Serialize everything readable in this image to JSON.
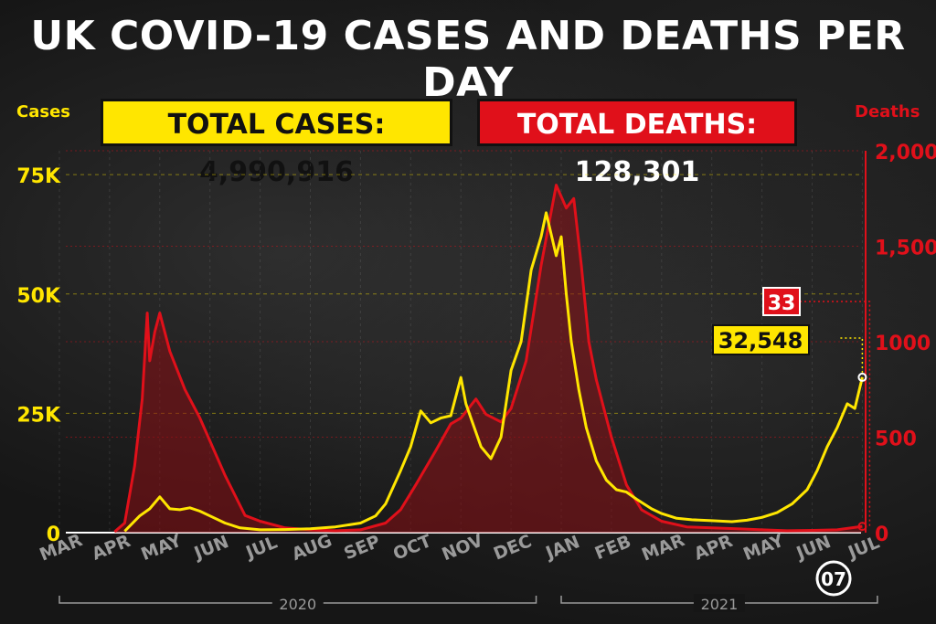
{
  "title": "UK COVID-19 CASES AND DEATHS PER DAY",
  "total_cases_label": "TOTAL CASES: 4,990,916",
  "total_deaths_label": "TOTAL DEATHS: 128,301",
  "colors": {
    "cases": "#ffe600",
    "deaths": "#e0101a",
    "deaths_fill": "#8a0f14",
    "background": "#161616",
    "text": "#ffffff"
  },
  "chart_data": {
    "type": "line",
    "title": "UK COVID-19 CASES AND DEATHS PER DAY",
    "ylabel_left": "Cases",
    "ylabel_right": "Deaths",
    "left_axis": {
      "ylim": [
        0,
        80000
      ],
      "ticks": [
        0,
        25000,
        50000,
        75000
      ],
      "tick_labels": [
        "0",
        "25K",
        "50K",
        "75K"
      ]
    },
    "right_axis": {
      "ylim": [
        0,
        2000
      ],
      "ticks": [
        0,
        500,
        1000,
        1500,
        2000
      ],
      "tick_labels": [
        "0",
        "500",
        "1000",
        "1,500",
        "2,000"
      ]
    },
    "x_ticks": [
      "MAR",
      "APR",
      "MAY",
      "JUN",
      "JUL",
      "AUG",
      "SEP",
      "OCT",
      "NOV",
      "DEC",
      "JAN",
      "FEB",
      "MAR",
      "APR",
      "MAY",
      "JUN",
      "JUL"
    ],
    "x_tick_months": [
      0,
      1,
      2,
      3,
      4,
      5,
      6,
      7,
      8,
      9,
      10,
      11,
      12,
      13,
      14,
      15,
      16
    ],
    "year_labels": [
      {
        "label": "2020",
        "from": 0,
        "to": 9.5
      },
      {
        "label": "2021",
        "from": 10,
        "to": 16.3
      }
    ],
    "grid": true,
    "series": [
      {
        "name": "Cases",
        "axis": "left",
        "x": [
          1.3,
          1.6,
          1.8,
          2.0,
          2.2,
          2.4,
          2.6,
          2.8,
          3.0,
          3.3,
          3.6,
          4.0,
          4.5,
          5.0,
          5.5,
          6.0,
          6.3,
          6.5,
          6.8,
          7.0,
          7.2,
          7.4,
          7.6,
          7.8,
          8.0,
          8.1,
          8.2,
          8.4,
          8.6,
          8.8,
          9.0,
          9.2,
          9.4,
          9.6,
          9.7,
          9.9,
          10.0,
          10.1,
          10.2,
          10.35,
          10.5,
          10.7,
          10.9,
          11.1,
          11.3,
          11.5,
          11.8,
          12.0,
          12.3,
          12.6,
          13.0,
          13.4,
          13.7,
          14.0,
          14.3,
          14.6,
          14.9,
          15.1,
          15.3,
          15.5,
          15.7,
          15.85,
          16.0
        ],
        "values": [
          300,
          3500,
          5000,
          7500,
          5000,
          4800,
          5200,
          4500,
          3500,
          2000,
          1000,
          600,
          650,
          800,
          1200,
          2000,
          3500,
          6000,
          13000,
          18000,
          25500,
          23000,
          24000,
          24500,
          32500,
          27000,
          24000,
          18000,
          15500,
          20000,
          34000,
          40000,
          55000,
          62000,
          67000,
          58000,
          62000,
          50000,
          40000,
          30000,
          22000,
          15000,
          11000,
          9000,
          8500,
          7000,
          5000,
          4000,
          3000,
          2700,
          2500,
          2300,
          2600,
          3200,
          4200,
          6000,
          9000,
          13000,
          18000,
          22000,
          27000,
          26000,
          32548
        ]
      },
      {
        "name": "Deaths",
        "axis": "right",
        "x": [
          1.1,
          1.3,
          1.5,
          1.65,
          1.75,
          1.8,
          1.9,
          2.0,
          2.2,
          2.5,
          2.8,
          3.0,
          3.3,
          3.7,
          4.0,
          4.5,
          5.0,
          5.5,
          6.0,
          6.5,
          6.8,
          7.1,
          7.5,
          7.8,
          8.0,
          8.3,
          8.5,
          8.8,
          9.0,
          9.3,
          9.6,
          9.9,
          10.1,
          10.25,
          10.4,
          10.55,
          10.7,
          11.0,
          11.3,
          11.6,
          12.0,
          12.5,
          13.0,
          13.5,
          14.0,
          14.5,
          15.0,
          15.5,
          16.0
        ],
        "values": [
          5,
          50,
          350,
          700,
          1150,
          900,
          1050,
          1150,
          950,
          750,
          600,
          480,
          300,
          90,
          60,
          25,
          15,
          10,
          15,
          50,
          120,
          250,
          430,
          570,
          600,
          700,
          620,
          580,
          650,
          900,
          1400,
          1820,
          1700,
          1750,
          1400,
          1000,
          800,
          500,
          250,
          120,
          60,
          30,
          25,
          20,
          15,
          10,
          12,
          15,
          33
        ]
      }
    ],
    "annotations": [
      {
        "text": "32,548",
        "series": "Cases",
        "x": 16.0,
        "y": 32548
      },
      {
        "text": "33",
        "series": "Deaths",
        "x": 16.0,
        "y": 33
      }
    ],
    "end_marker_label": "07"
  }
}
